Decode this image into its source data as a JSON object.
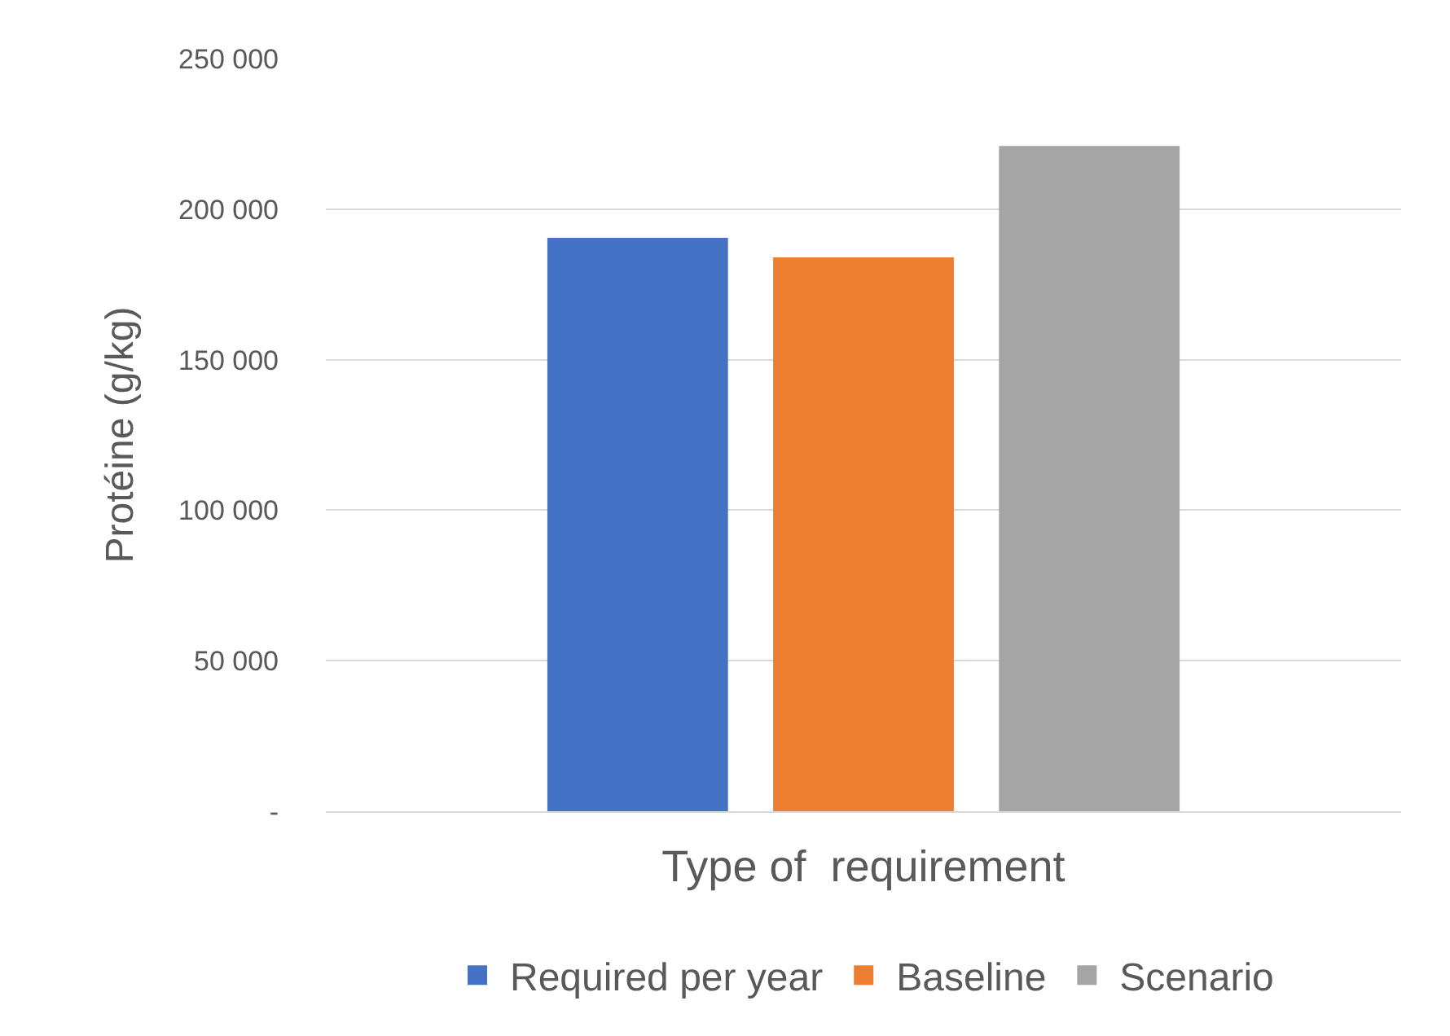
{
  "chart_data": {
    "type": "bar",
    "xlabel": "Type of  requirement",
    "ylabel": "Protéine (g/kg)",
    "categories": [
      null
    ],
    "series": [
      {
        "name": "Required per year",
        "color": "#4472c4",
        "values": [
          190500
        ]
      },
      {
        "name": "Baseline",
        "color": "#ed7d31",
        "values": [
          184000
        ]
      },
      {
        "name": "Scenario",
        "color": "#a5a5a5",
        "values": [
          221000
        ]
      }
    ],
    "ylim": [
      0,
      250000
    ],
    "yticks": [
      {
        "value": 0,
        "label": "-"
      },
      {
        "value": 50000,
        "label": "50 000"
      },
      {
        "value": 100000,
        "label": "100 000"
      },
      {
        "value": 150000,
        "label": "150 000"
      },
      {
        "value": 200000,
        "label": "200 000"
      },
      {
        "value": 250000,
        "label": "250 000"
      }
    ],
    "grid": "y",
    "legend": "bottom"
  }
}
